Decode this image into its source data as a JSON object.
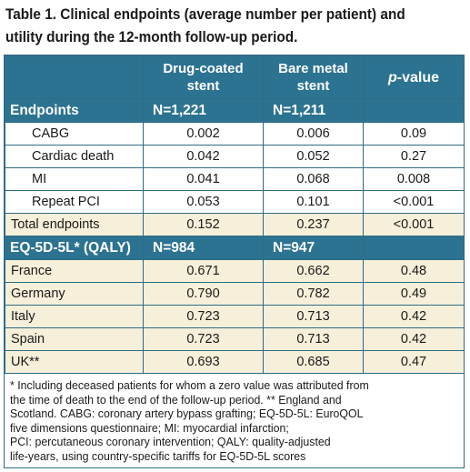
{
  "caption": {
    "line1": "Table 1. Clinical endpoints (average number per patient) and",
    "line2": "utility during the 12-month follow-up period."
  },
  "table": {
    "header": {
      "col1_line1": "Drug-coated",
      "col1_line2": "stent",
      "col2_line1": "Bare metal",
      "col2_line2": "stent",
      "col3_italic": "p",
      "col3_rest": "-value"
    },
    "endpoints": {
      "label": "Endpoints",
      "n1": "N=1,221",
      "n2": "N=1,211",
      "rows": [
        {
          "label": "CABG",
          "dcs": "0.002",
          "bms": "0.006",
          "p": "0.09"
        },
        {
          "label": "Cardiac death",
          "dcs": "0.042",
          "bms": "0.052",
          "p": "0.27"
        },
        {
          "label": "MI",
          "dcs": "0.041",
          "bms": "0.068",
          "p": "0.008"
        },
        {
          "label": "Repeat PCI",
          "dcs": "0.053",
          "bms": "0.101",
          "p": "<0.001"
        }
      ],
      "total": {
        "label": "Total endpoints",
        "dcs": "0.152",
        "bms": "0.237",
        "p": "<0.001"
      }
    },
    "qaly": {
      "label": "EQ-5D-5L* (QALY)",
      "n1": "N=984",
      "n2": "N=947",
      "rows": [
        {
          "label": "France",
          "dcs": "0.671",
          "bms": "0.662",
          "p": "0.48"
        },
        {
          "label": "Germany",
          "dcs": "0.790",
          "bms": "0.782",
          "p": "0.49"
        },
        {
          "label": "Italy",
          "dcs": "0.723",
          "bms": "0.713",
          "p": "0.42"
        },
        {
          "label": "Spain",
          "dcs": "0.723",
          "bms": "0.713",
          "p": "0.42"
        },
        {
          "label": "UK**",
          "dcs": "0.693",
          "bms": "0.685",
          "p": "0.47"
        }
      ]
    }
  },
  "footnote": {
    "lines": [
      "* Including deceased patients for whom a zero value was attributed from",
      "the time of death to the end of the follow-up period. ** England and",
      "Scotland. CABG: coronary artery bypass grafting; EQ-5D-5L: EuroQOL",
      "five dimensions questionnaire; MI: myocardial infarction;",
      "PCI: percutaneous coronary intervention; QALY: quality-adjusted",
      "life-years, using country-specific tariffs for EQ-5D-5L scores"
    ]
  }
}
